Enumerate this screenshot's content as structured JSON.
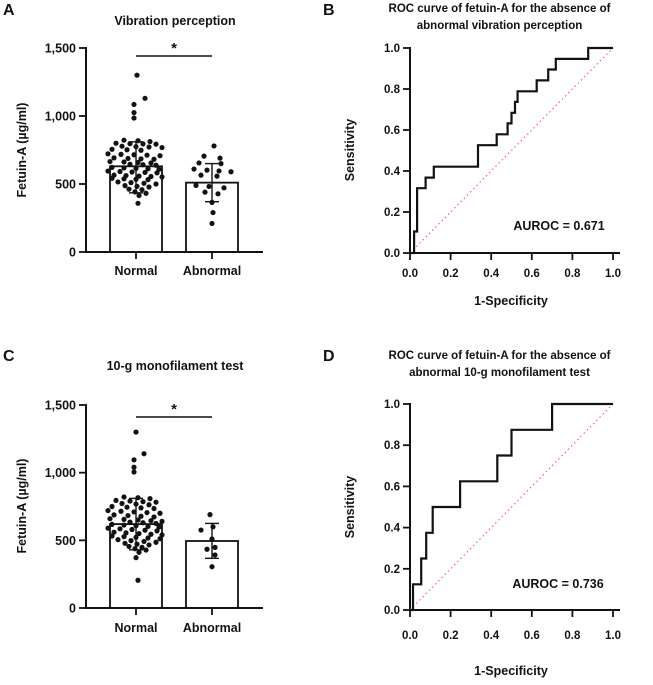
{
  "figure": {
    "background": "#ffffff",
    "text_color": "#121212"
  },
  "chart_data": [
    {
      "panel": "A",
      "type": "scatter_bar",
      "title": "Vibration perception",
      "ylabel": "Fetuin-A (µg/ml)",
      "ymax": 1500,
      "yticks": [
        {
          "value": 0,
          "label": "0"
        },
        {
          "value": 500,
          "label": "500"
        },
        {
          "value": 1000,
          "label": "1,000"
        },
        {
          "value": 1500,
          "label": "1,500"
        }
      ],
      "significance": "*",
      "groups": [
        {
          "label": "Normal",
          "bar_mean": 630,
          "err_low": 435,
          "err_high": 810,
          "dots": [
            [
              1,
              1300
            ],
            [
              9,
              1130
            ],
            [
              -2,
              1085
            ],
            [
              -2,
              1025
            ],
            [
              -2,
              985
            ],
            [
              -12,
              822
            ],
            [
              2,
              818
            ],
            [
              14,
              812
            ],
            [
              -20,
              800
            ],
            [
              -6,
              797
            ],
            [
              7,
              795
            ],
            [
              20,
              793
            ],
            [
              -14,
              778
            ],
            [
              0,
              775
            ],
            [
              13,
              772
            ],
            [
              26,
              768
            ],
            [
              -24,
              755
            ],
            [
              -9,
              752
            ],
            [
              5,
              748
            ],
            [
              -28,
              722
            ],
            [
              -15,
              718
            ],
            [
              -2,
              715
            ],
            [
              11,
              712
            ],
            [
              24,
              708
            ],
            [
              -22,
              692
            ],
            [
              -8,
              688
            ],
            [
              5,
              685
            ],
            [
              18,
              682
            ],
            [
              -26,
              665
            ],
            [
              -12,
              662
            ],
            [
              2,
              658
            ],
            [
              15,
              655
            ],
            [
              -6,
              645
            ],
            [
              7,
              642
            ],
            [
              20,
              638
            ],
            [
              -24,
              622
            ],
            [
              -12,
              618
            ],
            [
              0,
              615
            ],
            [
              12,
              612
            ],
            [
              23,
              608
            ],
            [
              -28,
              595
            ],
            [
              -16,
              592
            ],
            [
              -4,
              588
            ],
            [
              9,
              585
            ],
            [
              21,
              582
            ],
            [
              -22,
              565
            ],
            [
              -10,
              562
            ],
            [
              3,
              558
            ],
            [
              15,
              555
            ],
            [
              26,
              552
            ],
            [
              -24,
              542
            ],
            [
              -12,
              538
            ],
            [
              0,
              535
            ],
            [
              12,
              532
            ],
            [
              -18,
              515
            ],
            [
              -5,
              510
            ],
            [
              8,
              505
            ],
            [
              20,
              500
            ],
            [
              -11,
              488
            ],
            [
              1,
              483
            ],
            [
              13,
              478
            ],
            [
              -7,
              462
            ],
            [
              6,
              458
            ],
            [
              -1,
              442
            ],
            [
              10,
              432
            ],
            [
              3,
              415
            ],
            [
              2,
              358
            ]
          ]
        },
        {
          "label": "Abnormal",
          "bar_mean": 510,
          "err_low": 370,
          "err_high": 650,
          "dots": [
            [
              2,
              780
            ],
            [
              -8,
              705
            ],
            [
              8,
              690
            ],
            [
              -13,
              655
            ],
            [
              9,
              650
            ],
            [
              -18,
              610
            ],
            [
              -5,
              602
            ],
            [
              7,
              596
            ],
            [
              19,
              590
            ],
            [
              -11,
              565
            ],
            [
              5,
              558
            ],
            [
              -16,
              490
            ],
            [
              -3,
              482
            ],
            [
              12,
              472
            ],
            [
              -7,
              440
            ],
            [
              6,
              428
            ],
            [
              0,
              365
            ],
            [
              1,
              290
            ],
            [
              0,
              210
            ]
          ]
        }
      ]
    },
    {
      "panel": "B",
      "type": "roc",
      "title_line1": "ROC curve of fetuin-A for the absence of",
      "title_line2": "abnormal vibration perception",
      "xlabel": "1-Specificity",
      "ylabel": "Sensitivity",
      "xticks": [
        "0.0",
        "0.2",
        "0.4",
        "0.6",
        "0.8",
        "1.0"
      ],
      "yticks": [
        "0.0",
        "0.2",
        "0.4",
        "0.6",
        "0.8",
        "1.0"
      ],
      "auroc": 0.671,
      "auroc_label": "AUROC = 0.671",
      "curve_color": "#121212",
      "diagonal_color": "#f15a5a",
      "curve": [
        [
          0,
          0
        ],
        [
          0.02,
          0
        ],
        [
          0.02,
          0.105
        ],
        [
          0.035,
          0.105
        ],
        [
          0.035,
          0.316
        ],
        [
          0.077,
          0.316
        ],
        [
          0.077,
          0.368
        ],
        [
          0.117,
          0.368
        ],
        [
          0.117,
          0.421
        ],
        [
          0.335,
          0.421
        ],
        [
          0.335,
          0.526
        ],
        [
          0.427,
          0.526
        ],
        [
          0.427,
          0.579
        ],
        [
          0.481,
          0.579
        ],
        [
          0.481,
          0.632
        ],
        [
          0.5,
          0.632
        ],
        [
          0.5,
          0.684
        ],
        [
          0.517,
          0.684
        ],
        [
          0.517,
          0.737
        ],
        [
          0.53,
          0.737
        ],
        [
          0.53,
          0.789
        ],
        [
          0.624,
          0.789
        ],
        [
          0.624,
          0.842
        ],
        [
          0.681,
          0.842
        ],
        [
          0.681,
          0.895
        ],
        [
          0.718,
          0.895
        ],
        [
          0.718,
          0.947
        ],
        [
          0.878,
          0.947
        ],
        [
          0.878,
          1.0
        ],
        [
          1.0,
          1.0
        ]
      ]
    },
    {
      "panel": "C",
      "type": "scatter_bar",
      "title": "10-g monofilament test",
      "ylabel": "Fetuin-A (µg/ml)",
      "ymax": 1500,
      "yticks": [
        {
          "value": 0,
          "label": "0"
        },
        {
          "value": 500,
          "label": "500"
        },
        {
          "value": 1000,
          "label": "1,000"
        },
        {
          "value": 1500,
          "label": "1,500"
        }
      ],
      "significance": "*",
      "groups": [
        {
          "label": "Normal",
          "bar_mean": 620,
          "err_low": 430,
          "err_high": 810,
          "dots": [
            [
              0,
              1300
            ],
            [
              8,
              1140
            ],
            [
              -2,
              1095
            ],
            [
              -2,
              1040
            ],
            [
              -2,
              1005
            ],
            [
              -12,
              820
            ],
            [
              2,
              815
            ],
            [
              14,
              808
            ],
            [
              -20,
              795
            ],
            [
              -6,
              790
            ],
            [
              7,
              786
            ],
            [
              20,
              782
            ],
            [
              -14,
              772
            ],
            [
              0,
              768
            ],
            [
              13,
              763
            ],
            [
              -24,
              750
            ],
            [
              -9,
              745
            ],
            [
              5,
              740
            ],
            [
              18,
              735
            ],
            [
              -28,
              720
            ],
            [
              -15,
              715
            ],
            [
              -2,
              710
            ],
            [
              11,
              705
            ],
            [
              24,
              700
            ],
            [
              -22,
              688
            ],
            [
              -8,
              683
            ],
            [
              5,
              678
            ],
            [
              18,
              673
            ],
            [
              -26,
              660
            ],
            [
              -12,
              655
            ],
            [
              2,
              650
            ],
            [
              15,
              645
            ],
            [
              26,
              640
            ],
            [
              -6,
              635
            ],
            [
              7,
              630
            ],
            [
              20,
              625
            ],
            [
              -24,
              618
            ],
            [
              -12,
              613
            ],
            [
              0,
              608
            ],
            [
              12,
              603
            ],
            [
              23,
              598
            ],
            [
              -28,
              590
            ],
            [
              -16,
              585
            ],
            [
              -4,
              580
            ],
            [
              9,
              575
            ],
            [
              21,
              570
            ],
            [
              -22,
              560
            ],
            [
              -10,
              555
            ],
            [
              3,
              550
            ],
            [
              15,
              545
            ],
            [
              26,
              540
            ],
            [
              -24,
              532
            ],
            [
              -12,
              527
            ],
            [
              0,
              522
            ],
            [
              12,
              517
            ],
            [
              24,
              512
            ],
            [
              -18,
              505
            ],
            [
              -5,
              498
            ],
            [
              8,
              492
            ],
            [
              20,
              486
            ],
            [
              -11,
              478
            ],
            [
              1,
              472
            ],
            [
              13,
              466
            ],
            [
              -7,
              455
            ],
            [
              6,
              448
            ],
            [
              -1,
              438
            ],
            [
              10,
              428
            ],
            [
              3,
              412
            ],
            [
              0,
              372
            ],
            [
              2,
              205
            ]
          ]
        },
        {
          "label": "Abnormal",
          "bar_mean": 495,
          "err_low": 367,
          "err_high": 625,
          "dots": [
            [
              -2,
              690
            ],
            [
              1,
              600
            ],
            [
              -11,
              576
            ],
            [
              0,
              510
            ],
            [
              3,
              448
            ],
            [
              -5,
              434
            ],
            [
              3,
              392
            ],
            [
              0,
              305
            ]
          ]
        }
      ]
    },
    {
      "panel": "D",
      "type": "roc",
      "title_line1": "ROC curve of fetuin-A for the absence of",
      "title_line2": "abnormal 10-g monofilament test",
      "xlabel": "1-Specificity",
      "ylabel": "Sensitivity",
      "xticks": [
        "0.0",
        "0.2",
        "0.4",
        "0.6",
        "0.8",
        "1.0"
      ],
      "yticks": [
        "0.0",
        "0.2",
        "0.4",
        "0.6",
        "0.8",
        "1.0"
      ],
      "auroc": 0.736,
      "auroc_label": "AUROC = 0.736",
      "curve_color": "#121212",
      "diagonal_color": "#f15a5a",
      "curve": [
        [
          0,
          0
        ],
        [
          0.015,
          0
        ],
        [
          0.015,
          0.125
        ],
        [
          0.055,
          0.125
        ],
        [
          0.055,
          0.25
        ],
        [
          0.08,
          0.25
        ],
        [
          0.08,
          0.375
        ],
        [
          0.112,
          0.375
        ],
        [
          0.112,
          0.5
        ],
        [
          0.247,
          0.5
        ],
        [
          0.247,
          0.625
        ],
        [
          0.43,
          0.625
        ],
        [
          0.43,
          0.75
        ],
        [
          0.5,
          0.75
        ],
        [
          0.5,
          0.875
        ],
        [
          0.7,
          0.875
        ],
        [
          0.7,
          1.0
        ],
        [
          1.0,
          1.0
        ]
      ]
    }
  ]
}
